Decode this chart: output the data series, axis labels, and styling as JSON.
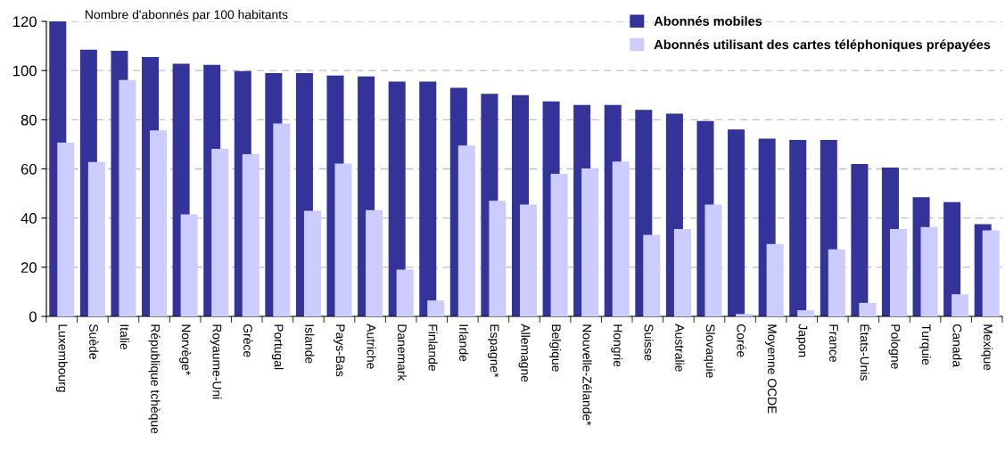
{
  "chart_data": {
    "type": "bar",
    "ylabel": "Nombre d'abonnés par 100 habitants",
    "categories": [
      "Luxembourg",
      "Suède",
      "Italie",
      "République tchèque",
      "Norvège*",
      "Royaume-Uni",
      "Grèce",
      "Portugal",
      "Islande",
      "Pays-Bas",
      "Autriche",
      "Danemark",
      "Finlande",
      "Irlande",
      "Espagne*",
      "Allemagne",
      "Belgique",
      "Nouvelle-Zélande*",
      "Hongrie",
      "Suisse",
      "Australie",
      "Slovaquie",
      "Corée",
      "Moyenne OCDE",
      "Japon",
      "France",
      "États-Unis",
      "Pologne",
      "Turquie",
      "Canada",
      "Mexique"
    ],
    "series": [
      {
        "name": "Abonnés mobiles",
        "color": "#333399",
        "values": [
          120,
          108.5,
          108,
          105.5,
          102.8,
          102.3,
          99.8,
          99,
          99,
          98,
          97.6,
          95.5,
          95.5,
          93,
          90.5,
          90,
          87.5,
          86,
          86,
          84,
          82.5,
          79.5,
          76,
          72.3,
          71.8,
          71.8,
          62,
          60.5,
          48.5,
          46.5,
          37.5
        ]
      },
      {
        "name": "Abonnés utilisant des cartes téléphoniques prépayées",
        "color": "#ccccff",
        "values": [
          70.7,
          62.8,
          96.2,
          75.7,
          41.5,
          68.2,
          66,
          78.5,
          43,
          62.2,
          43.2,
          19,
          6.5,
          69.5,
          47,
          45.5,
          58,
          60.2,
          63,
          33.2,
          35.5,
          45.5,
          1,
          29.5,
          2.5,
          27.3,
          5.5,
          35.5,
          36.3,
          9,
          35
        ]
      }
    ],
    "ylim": [
      0,
      120
    ],
    "yticks": [
      0,
      20,
      40,
      60,
      80,
      100,
      120
    ],
    "grid": "y",
    "legend": "top right"
  }
}
